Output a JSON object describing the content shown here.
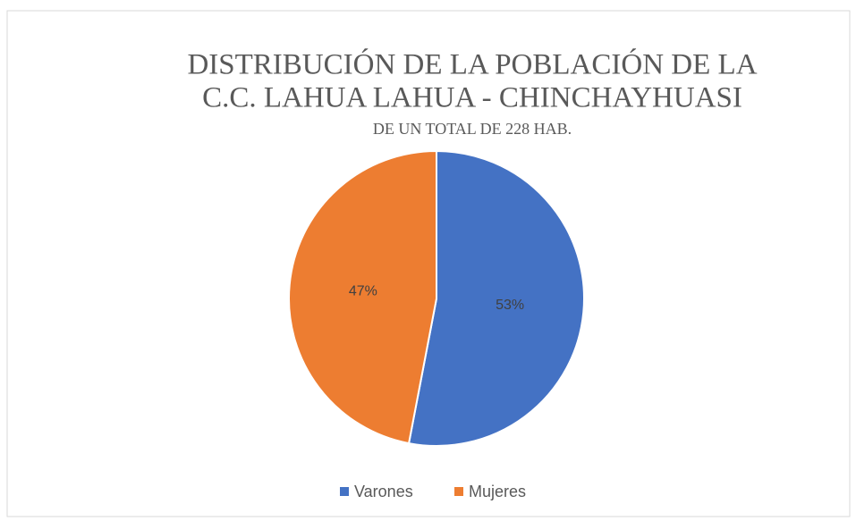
{
  "chart_data": {
    "type": "pie",
    "title": [
      "DISTRIBUCIÓN DE LA POBLACIÓN DE LA",
      "C.C. LAHUA LAHUA - CHINCHAYHUASI"
    ],
    "subtitle": "DE UN TOTAL DE 228 HAB.",
    "categories": [
      "Varones",
      "Mujeres"
    ],
    "values": [
      53,
      47
    ],
    "value_labels": [
      "53%",
      "47%"
    ],
    "colors": [
      "#4472c4",
      "#ed7d31"
    ],
    "legend": "bottom"
  }
}
